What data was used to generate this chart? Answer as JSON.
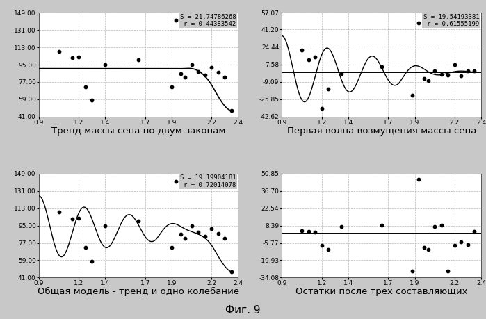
{
  "bg_color": "#c8c8c8",
  "plot_bg_color": "#ffffff",
  "grid_color": "#999999",
  "line_color": "#000000",
  "dot_color": "#000000",
  "text_color": "#000000",
  "subplot1": {
    "title": "Тренд массы сена по двум законам",
    "stats": "S = 21.74786268\nr = 0.44383542",
    "xlim": [
      0.9,
      2.4
    ],
    "ylim": [
      41.0,
      149.0
    ],
    "yticks": [
      41.0,
      59.0,
      77.0,
      95.0,
      113.0,
      131.0,
      149.0
    ],
    "ytick_labels": [
      "41.00",
      "59.00",
      "77.00",
      "95.00",
      "113.00",
      "131.00",
      "149.00"
    ],
    "xticks": [
      0.9,
      1.2,
      1.4,
      1.7,
      1.9,
      2.2,
      2.4
    ],
    "scatter_x": [
      1.05,
      1.15,
      1.2,
      1.25,
      1.3,
      1.4,
      1.65,
      1.9,
      1.93,
      1.97,
      2.0,
      2.05,
      2.1,
      2.15,
      2.2,
      2.25,
      2.3,
      2.35
    ],
    "scatter_y": [
      109.0,
      102.0,
      103.0,
      72.0,
      58.0,
      95.0,
      100.0,
      72.0,
      141.0,
      86.0,
      82.0,
      95.0,
      88.0,
      84.0,
      92.0,
      87.0,
      82.0,
      47.0
    ],
    "trend_x": [
      0.9,
      1.0,
      1.1,
      1.2,
      1.3,
      1.4,
      1.5,
      1.6,
      1.7,
      1.8,
      1.9,
      2.0,
      2.05,
      2.1,
      2.15,
      2.2,
      2.25,
      2.3,
      2.35
    ],
    "trend_y": [
      91.0,
      91.0,
      91.0,
      91.0,
      91.0,
      91.0,
      91.0,
      91.0,
      91.0,
      91.0,
      91.0,
      91.0,
      91.0,
      88.5,
      83.0,
      74.0,
      62.0,
      52.0,
      47.0
    ]
  },
  "subplot2": {
    "title": "Первая волна возмущения массы сена",
    "stats": "S = 19.54193381\nr = 0.61555199",
    "xlim": [
      0.9,
      2.4
    ],
    "ylim": [
      -42.62,
      57.07
    ],
    "yticks": [
      -42.62,
      -25.85,
      -9.09,
      7.58,
      24.44,
      41.2,
      57.07
    ],
    "ytick_labels": [
      "-42.62",
      "-25.85",
      "-9.09",
      "7.58",
      "24.44",
      "41.20",
      "57.07"
    ],
    "xticks": [
      0.9,
      1.2,
      1.4,
      1.7,
      1.9,
      2.2,
      2.4
    ],
    "scatter_x": [
      1.05,
      1.1,
      1.15,
      1.2,
      1.25,
      1.35,
      1.65,
      1.88,
      1.93,
      1.97,
      2.0,
      2.05,
      2.1,
      2.15,
      2.2,
      2.25,
      2.3,
      2.35
    ],
    "scatter_y": [
      21.0,
      12.0,
      14.5,
      -35.0,
      -16.0,
      -1.5,
      5.0,
      -22.0,
      47.0,
      -6.0,
      -8.0,
      1.0,
      -2.0,
      -2.5,
      7.5,
      -3.5,
      1.5,
      1.5
    ],
    "hline_y": 0.0,
    "wave_freq": 18.5,
    "wave_amp0": 35.0,
    "wave_decay": 1.2,
    "wave_decay2": 5.0,
    "wave_break": 1.78,
    "wave_phase": 1.5
  },
  "subplot3": {
    "title": "Общая модель - тренд и одно колебание",
    "stats": "S = 19.19904181\nr = 0.72014078",
    "xlim": [
      0.9,
      2.4
    ],
    "ylim": [
      41.0,
      149.0
    ],
    "yticks": [
      41.0,
      59.0,
      77.0,
      95.0,
      113.0,
      131.0,
      149.0
    ],
    "ytick_labels": [
      "41.00",
      "59.00",
      "77.00",
      "95.00",
      "113.00",
      "131.00",
      "149.00"
    ],
    "xticks": [
      0.9,
      1.2,
      1.4,
      1.7,
      1.9,
      2.2,
      2.4
    ],
    "scatter_x": [
      1.05,
      1.15,
      1.2,
      1.25,
      1.3,
      1.4,
      1.65,
      1.9,
      1.93,
      1.97,
      2.0,
      2.05,
      2.1,
      2.15,
      2.2,
      2.25,
      2.3,
      2.35
    ],
    "scatter_y": [
      109.0,
      102.0,
      103.0,
      72.0,
      58.0,
      95.0,
      100.0,
      72.0,
      141.0,
      86.0,
      82.0,
      95.0,
      88.0,
      84.0,
      92.0,
      87.0,
      82.0,
      47.0
    ]
  },
  "subplot4": {
    "title": "Остатки после трех составляющих",
    "xlim": [
      0.9,
      2.4
    ],
    "ylim": [
      -34.08,
      50.85
    ],
    "yticks": [
      -34.08,
      -19.93,
      -5.77,
      8.39,
      22.54,
      36.7,
      50.85
    ],
    "ytick_labels": [
      "-34.08",
      "-19.93",
      "-5.77",
      "8.39",
      "22.54",
      "36.70",
      "50.85"
    ],
    "xticks": [
      0.9,
      1.2,
      1.4,
      1.7,
      1.9,
      2.2,
      2.4
    ],
    "scatter_x": [
      1.05,
      1.1,
      1.15,
      1.2,
      1.25,
      1.35,
      1.65,
      1.88,
      1.93,
      1.97,
      2.0,
      2.05,
      2.1,
      2.15,
      2.2,
      2.25,
      2.3,
      2.35
    ],
    "scatter_y": [
      4.0,
      3.5,
      3.0,
      -7.5,
      -11.0,
      7.5,
      9.0,
      -28.5,
      46.5,
      -9.5,
      -11.0,
      7.5,
      9.0,
      -28.5,
      -7.5,
      -5.0,
      -7.0,
      3.5
    ],
    "hline_y": 2.5
  },
  "figure_title": "Фиг. 9",
  "stats_fontsize": 6.5,
  "axis_fontsize": 6.5,
  "caption_fontsize": 9.5
}
